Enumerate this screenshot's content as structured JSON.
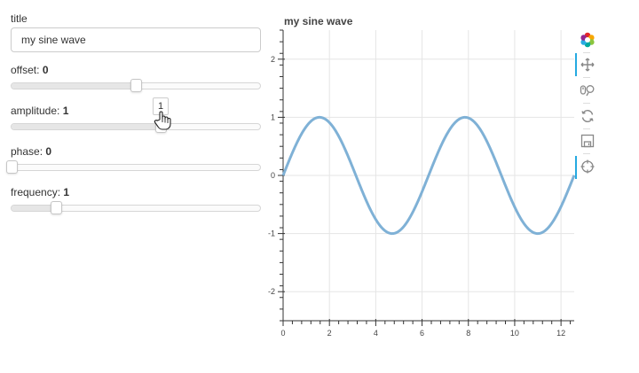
{
  "controls": {
    "title": {
      "label": "title",
      "value": "my sine wave"
    },
    "sliders": [
      {
        "key": "offset",
        "label": "offset: ",
        "value_text": "0",
        "value": 0,
        "min": -5,
        "max": 5,
        "show_tooltip": false
      },
      {
        "key": "amplitude",
        "label": "amplitude: ",
        "value_text": "1",
        "value": 1,
        "min": -5,
        "max": 5,
        "show_tooltip": true,
        "tooltip": "1"
      },
      {
        "key": "phase",
        "label": "phase: ",
        "value_text": "0",
        "value": 0,
        "min": 0,
        "max": 6.28,
        "show_tooltip": false
      },
      {
        "key": "frequency",
        "label": "frequency: ",
        "value_text": "1",
        "value": 1,
        "min": 0.1,
        "max": 5.1,
        "show_tooltip": false
      }
    ]
  },
  "toolbar": {
    "tools": [
      {
        "name": "bokeh-logo-icon",
        "active": false
      },
      {
        "name": "pan-tool-icon",
        "active": true
      },
      {
        "name": "wheel-zoom-tool-icon",
        "active": false
      },
      {
        "name": "reset-tool-icon",
        "active": false
      },
      {
        "name": "save-tool-icon",
        "active": false
      },
      {
        "name": "hover-tool-icon",
        "active": true
      }
    ]
  },
  "chart_data": {
    "type": "line",
    "title": "my sine wave",
    "xlabel": "",
    "ylabel": "",
    "xlim": [
      0,
      12.57
    ],
    "ylim": [
      -2.5,
      2.5
    ],
    "xticks": [
      0,
      2,
      4,
      6,
      8,
      10,
      12
    ],
    "xtick_labels": [
      "0",
      "2",
      "4",
      "6",
      "8",
      "10",
      "12"
    ],
    "yticks": [
      -2,
      -1,
      0,
      1,
      2
    ],
    "ytick_labels": [
      "-2",
      "-1",
      "0",
      "1",
      "2"
    ],
    "grid": true,
    "line_color": "#7fb1d6",
    "series": [
      {
        "function": "sine",
        "amplitude": 1,
        "frequency": 1,
        "phase": 0,
        "offset": 0,
        "x_range": [
          0,
          12.57
        ]
      }
    ]
  }
}
